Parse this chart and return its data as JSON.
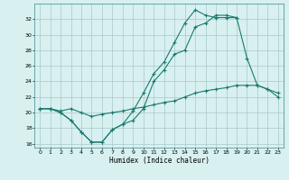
{
  "title": "",
  "xlabel": "Humidex (Indice chaleur)",
  "x": [
    0,
    1,
    2,
    3,
    4,
    5,
    6,
    7,
    8,
    9,
    10,
    11,
    12,
    13,
    14,
    15,
    16,
    17,
    18,
    19,
    20,
    21,
    22,
    23
  ],
  "line1": [
    20.5,
    20.5,
    20.0,
    19.0,
    17.5,
    16.2,
    16.2,
    17.8,
    18.5,
    20.2,
    22.5,
    25.0,
    26.5,
    29.0,
    31.5,
    33.2,
    32.5,
    32.2,
    32.2,
    32.2,
    null,
    null,
    null,
    null
  ],
  "line2": [
    20.5,
    20.5,
    20.0,
    19.0,
    17.5,
    16.2,
    16.2,
    17.8,
    18.5,
    19.0,
    20.5,
    24.0,
    25.5,
    27.5,
    28.0,
    31.0,
    31.5,
    32.5,
    32.5,
    32.2,
    27.0,
    23.5,
    23.0,
    22.0
  ],
  "line3": [
    20.5,
    20.5,
    20.2,
    20.5,
    20.0,
    19.5,
    19.8,
    20.0,
    20.2,
    20.5,
    20.7,
    21.0,
    21.3,
    21.5,
    22.0,
    22.5,
    22.8,
    23.0,
    23.2,
    23.5,
    23.5,
    23.5,
    23.0,
    22.5
  ],
  "color": "#1a7a6e",
  "bg_color": "#d8f0f0",
  "ylim": [
    15.5,
    34.0
  ],
  "xlim": [
    -0.5,
    23.5
  ],
  "yticks": [
    16,
    18,
    20,
    22,
    24,
    26,
    28,
    30,
    32
  ],
  "xticks": [
    0,
    1,
    2,
    3,
    4,
    5,
    6,
    7,
    8,
    9,
    10,
    11,
    12,
    13,
    14,
    15,
    16,
    17,
    18,
    19,
    20,
    21,
    22,
    23
  ],
  "figsize": [
    3.2,
    2.0
  ],
  "dpi": 100
}
